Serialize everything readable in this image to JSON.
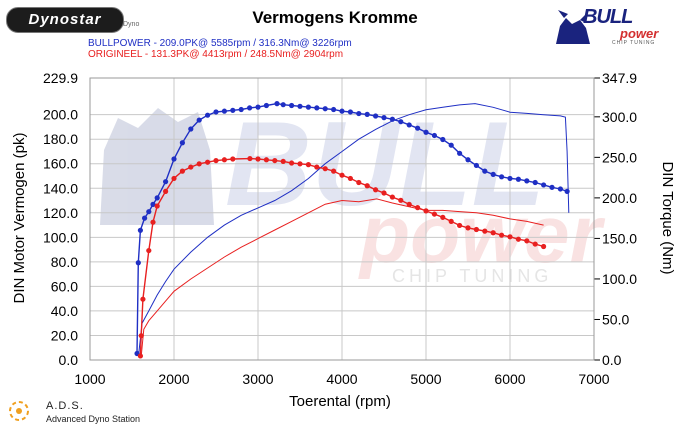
{
  "header": {
    "logo_text": "Dynostar",
    "logo_sub": "Dyno",
    "title": "Vermogens Kromme",
    "series_line_1": "BULLPOWER - 209.0PK@ 5585rpm / 316.3Nm@ 3226rpm",
    "series_line_2": "ORIGINEEL - 131.3PK@ 4413rpm / 248.5Nm@ 2904rpm",
    "brand_name": "BULL",
    "brand_sub": "power",
    "brand_tagline": "CHIP TUNING"
  },
  "watermark": {
    "word_1": "BULL",
    "word_2": "power",
    "tagline": "CHIP TUNING"
  },
  "footer": {
    "name": "A.D.S.",
    "subtitle": "Advanced Dyno Station"
  },
  "colors": {
    "bullpower": "#1f2fc4",
    "origineel": "#e82020",
    "grid": "#c8c8c8"
  },
  "chart_data": {
    "type": "line",
    "xlabel": "Toerental (rpm)",
    "ylabel_left": "DIN Motor Vermogen (pk)",
    "ylabel_right": "DIN Torque (Nm)",
    "xlim": [
      1000,
      7000
    ],
    "ylim_left": [
      0,
      229.9
    ],
    "ylim_right": [
      0,
      347.9
    ],
    "x_ticks": [
      "1000",
      "2000",
      "3000",
      "4000",
      "5000",
      "6000",
      "7000"
    ],
    "y_left_ticks": [
      "0.0",
      "20.0",
      "40.0",
      "60.0",
      "80.0",
      "100.0",
      "120.0",
      "140.0",
      "160.0",
      "180.0",
      "200.0",
      "229.9"
    ],
    "y_right_ticks": [
      "0.0",
      "50.0",
      "100.0",
      "150.0",
      "200.0",
      "250.0",
      "300.0",
      "347.9"
    ],
    "grid": true,
    "series": [
      {
        "name": "BULLPOWER",
        "kind": "torque",
        "axis": "right",
        "marker": "dot",
        "points": [
          [
            1560,
            8
          ],
          [
            1575,
            120
          ],
          [
            1600,
            160
          ],
          [
            1650,
            175
          ],
          [
            1700,
            183
          ],
          [
            1750,
            192
          ],
          [
            1800,
            200
          ],
          [
            1900,
            220
          ],
          [
            2000,
            248
          ],
          [
            2100,
            268
          ],
          [
            2200,
            285
          ],
          [
            2300,
            296
          ],
          [
            2400,
            302
          ],
          [
            2500,
            306
          ],
          [
            2600,
            307
          ],
          [
            2700,
            308
          ],
          [
            2800,
            309
          ],
          [
            2900,
            311
          ],
          [
            3000,
            312
          ],
          [
            3100,
            314
          ],
          [
            3226,
            316.3
          ],
          [
            3300,
            315
          ],
          [
            3400,
            314
          ],
          [
            3500,
            313
          ],
          [
            3600,
            312
          ],
          [
            3700,
            311
          ],
          [
            3800,
            310
          ],
          [
            3900,
            309
          ],
          [
            4000,
            307
          ],
          [
            4100,
            306
          ],
          [
            4200,
            304
          ],
          [
            4300,
            303
          ],
          [
            4400,
            301
          ],
          [
            4500,
            299
          ],
          [
            4600,
            297
          ],
          [
            4700,
            294
          ],
          [
            4800,
            290
          ],
          [
            4900,
            286
          ],
          [
            5000,
            281
          ],
          [
            5100,
            277
          ],
          [
            5200,
            272
          ],
          [
            5300,
            265
          ],
          [
            5400,
            255
          ],
          [
            5500,
            247
          ],
          [
            5600,
            240
          ],
          [
            5700,
            233
          ],
          [
            5800,
            229
          ],
          [
            5900,
            226
          ],
          [
            6000,
            224
          ],
          [
            6100,
            223
          ],
          [
            6200,
            221
          ],
          [
            6300,
            219
          ],
          [
            6400,
            216
          ],
          [
            6500,
            213
          ],
          [
            6600,
            211
          ],
          [
            6680,
            208
          ]
        ]
      },
      {
        "name": "BULLPOWER",
        "kind": "power",
        "axis": "left",
        "marker": "none",
        "points": [
          [
            1580,
            5
          ],
          [
            1620,
            30
          ],
          [
            1700,
            40
          ],
          [
            1800,
            53
          ],
          [
            1900,
            64
          ],
          [
            2000,
            74
          ],
          [
            2200,
            88
          ],
          [
            2400,
            100
          ],
          [
            2600,
            110
          ],
          [
            2800,
            118
          ],
          [
            3000,
            124
          ],
          [
            3200,
            130
          ],
          [
            3400,
            138
          ],
          [
            3600,
            148
          ],
          [
            3800,
            160
          ],
          [
            4000,
            170
          ],
          [
            4200,
            180
          ],
          [
            4400,
            188
          ],
          [
            4600,
            195
          ],
          [
            4800,
            200
          ],
          [
            5000,
            204
          ],
          [
            5200,
            206
          ],
          [
            5400,
            208
          ],
          [
            5585,
            209
          ],
          [
            5800,
            206
          ],
          [
            6000,
            202
          ],
          [
            6200,
            201
          ],
          [
            6400,
            200
          ],
          [
            6600,
            199
          ],
          [
            6660,
            198
          ],
          [
            6680,
            170
          ],
          [
            6700,
            120
          ]
        ]
      },
      {
        "name": "ORIGINEEL",
        "kind": "torque",
        "axis": "right",
        "marker": "dot",
        "points": [
          [
            1600,
            5
          ],
          [
            1610,
            30
          ],
          [
            1630,
            75
          ],
          [
            1700,
            135
          ],
          [
            1750,
            170
          ],
          [
            1800,
            190
          ],
          [
            1900,
            208
          ],
          [
            2000,
            224
          ],
          [
            2100,
            233
          ],
          [
            2200,
            238
          ],
          [
            2300,
            242
          ],
          [
            2400,
            244
          ],
          [
            2500,
            246
          ],
          [
            2600,
            247
          ],
          [
            2700,
            248
          ],
          [
            2904,
            248.5
          ],
          [
            3000,
            248
          ],
          [
            3100,
            247
          ],
          [
            3200,
            246
          ],
          [
            3300,
            245
          ],
          [
            3400,
            243
          ],
          [
            3500,
            242
          ],
          [
            3600,
            241
          ],
          [
            3700,
            238
          ],
          [
            3800,
            236
          ],
          [
            3900,
            233
          ],
          [
            4000,
            228
          ],
          [
            4100,
            224
          ],
          [
            4200,
            219
          ],
          [
            4300,
            215
          ],
          [
            4400,
            210
          ],
          [
            4500,
            206
          ],
          [
            4600,
            201
          ],
          [
            4700,
            197
          ],
          [
            4800,
            192
          ],
          [
            4900,
            188
          ],
          [
            5000,
            184
          ],
          [
            5100,
            180
          ],
          [
            5200,
            176
          ],
          [
            5300,
            171
          ],
          [
            5400,
            166
          ],
          [
            5500,
            163
          ],
          [
            5600,
            161
          ],
          [
            5700,
            159
          ],
          [
            5800,
            157
          ],
          [
            5900,
            154
          ],
          [
            6000,
            152
          ],
          [
            6100,
            149
          ],
          [
            6200,
            147
          ],
          [
            6300,
            143
          ],
          [
            6400,
            140
          ]
        ]
      },
      {
        "name": "ORIGINEEL",
        "kind": "power",
        "axis": "left",
        "marker": "none",
        "points": [
          [
            1610,
            3
          ],
          [
            1640,
            25
          ],
          [
            1700,
            32
          ],
          [
            1800,
            40
          ],
          [
            1900,
            48
          ],
          [
            2000,
            56
          ],
          [
            2200,
            66
          ],
          [
            2400,
            75
          ],
          [
            2600,
            84
          ],
          [
            2800,
            92
          ],
          [
            3000,
            99
          ],
          [
            3200,
            106
          ],
          [
            3400,
            113
          ],
          [
            3600,
            120
          ],
          [
            3800,
            127
          ],
          [
            4000,
            130
          ],
          [
            4200,
            129
          ],
          [
            4413,
            131.3
          ],
          [
            4600,
            128
          ],
          [
            4800,
            125
          ],
          [
            5000,
            122
          ],
          [
            5200,
            122
          ],
          [
            5400,
            121
          ],
          [
            5600,
            120
          ],
          [
            5800,
            118
          ],
          [
            6000,
            115
          ],
          [
            6200,
            113
          ],
          [
            6400,
            110
          ]
        ]
      }
    ]
  }
}
